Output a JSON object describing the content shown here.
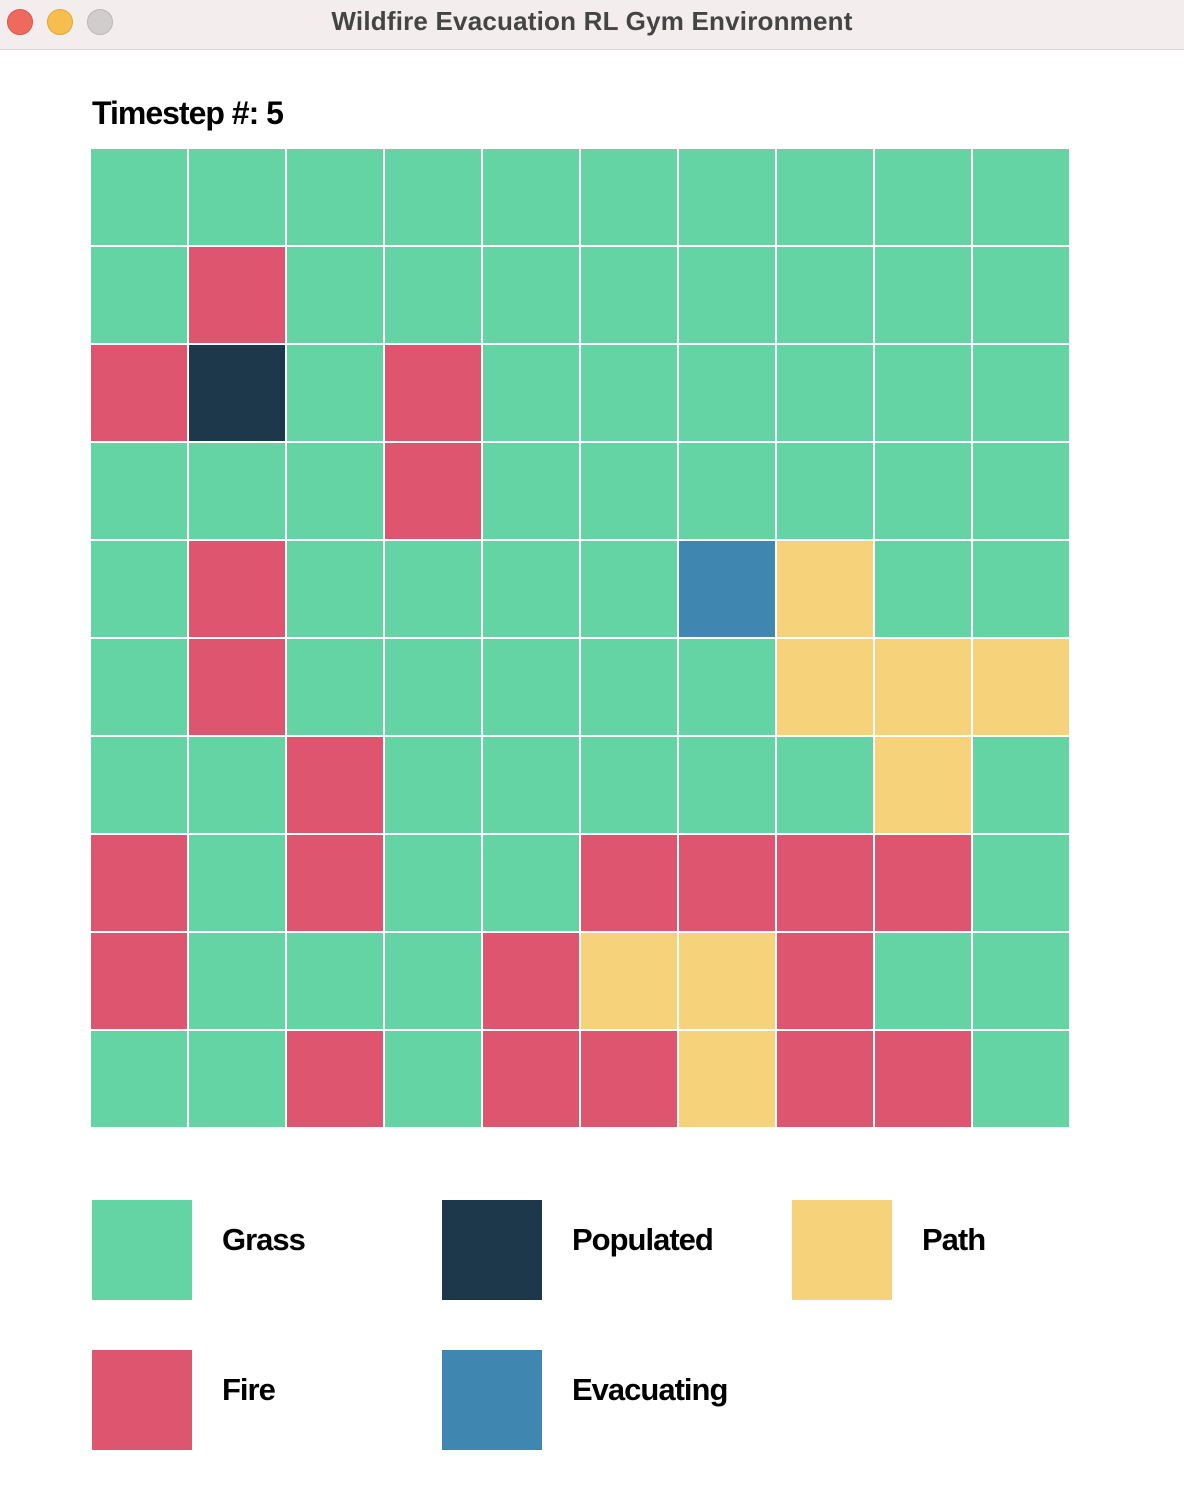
{
  "window": {
    "title": "Wildfire Evacuation RL Gym Environment"
  },
  "timestep": {
    "label": "Timestep #: 5",
    "value": 5
  },
  "colors": {
    "grass": "#64d4a4",
    "fire": "#de5570",
    "populated": "#1c384a",
    "path": "#f6d27a",
    "evacuating": "#3f87b0"
  },
  "grid": {
    "rows": 10,
    "cols": 10,
    "cells": [
      [
        "grass",
        "grass",
        "grass",
        "grass",
        "grass",
        "grass",
        "grass",
        "grass",
        "grass",
        "grass"
      ],
      [
        "grass",
        "fire",
        "grass",
        "grass",
        "grass",
        "grass",
        "grass",
        "grass",
        "grass",
        "grass"
      ],
      [
        "fire",
        "populated",
        "grass",
        "fire",
        "grass",
        "grass",
        "grass",
        "grass",
        "grass",
        "grass"
      ],
      [
        "grass",
        "grass",
        "grass",
        "fire",
        "grass",
        "grass",
        "grass",
        "grass",
        "grass",
        "grass"
      ],
      [
        "grass",
        "fire",
        "grass",
        "grass",
        "grass",
        "grass",
        "evacuating",
        "path",
        "grass",
        "grass"
      ],
      [
        "grass",
        "fire",
        "grass",
        "grass",
        "grass",
        "grass",
        "grass",
        "path",
        "path",
        "path"
      ],
      [
        "grass",
        "grass",
        "fire",
        "grass",
        "grass",
        "grass",
        "grass",
        "grass",
        "path",
        "grass"
      ],
      [
        "fire",
        "grass",
        "fire",
        "grass",
        "grass",
        "fire",
        "fire",
        "fire",
        "fire",
        "grass"
      ],
      [
        "fire",
        "grass",
        "grass",
        "grass",
        "fire",
        "path",
        "path",
        "fire",
        "grass",
        "grass"
      ],
      [
        "grass",
        "grass",
        "fire",
        "grass",
        "fire",
        "fire",
        "path",
        "fire",
        "fire",
        "grass"
      ]
    ]
  },
  "legend": [
    {
      "key": "grass",
      "label": "Grass"
    },
    {
      "key": "populated",
      "label": "Populated"
    },
    {
      "key": "path",
      "label": "Path"
    },
    {
      "key": "fire",
      "label": "Fire"
    },
    {
      "key": "evacuating",
      "label": "Evacuating"
    }
  ]
}
